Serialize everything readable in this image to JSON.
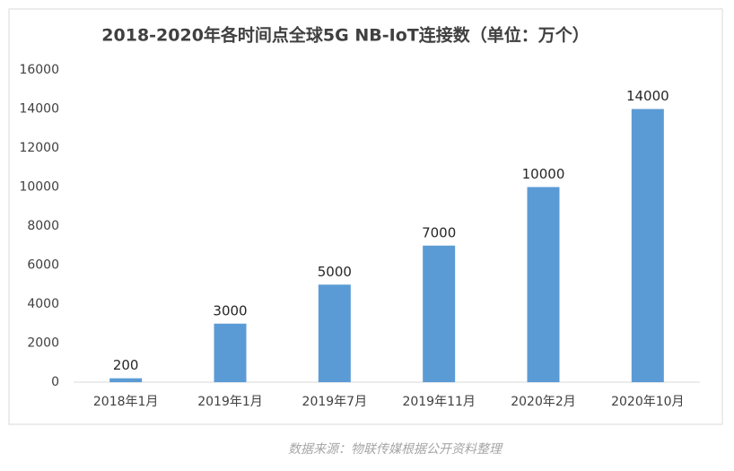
{
  "chart_data": {
    "type": "bar",
    "title": "2018-2020年各时间点全球5G NB-IoT连接数（单位：万个）",
    "categories": [
      "2018年1月",
      "2019年1月",
      "2019年7月",
      "2019年11月",
      "2020年2月",
      "2020年10月"
    ],
    "values": [
      200,
      3000,
      5000,
      7000,
      10000,
      14000
    ],
    "color": "#5b9bd5",
    "ylim": [
      0,
      16000
    ],
    "yticks": [
      0,
      2000,
      4000,
      6000,
      8000,
      10000,
      12000,
      14000,
      16000
    ],
    "grid": false,
    "source": "数据来源：物联传媒根据公开资料整理"
  }
}
